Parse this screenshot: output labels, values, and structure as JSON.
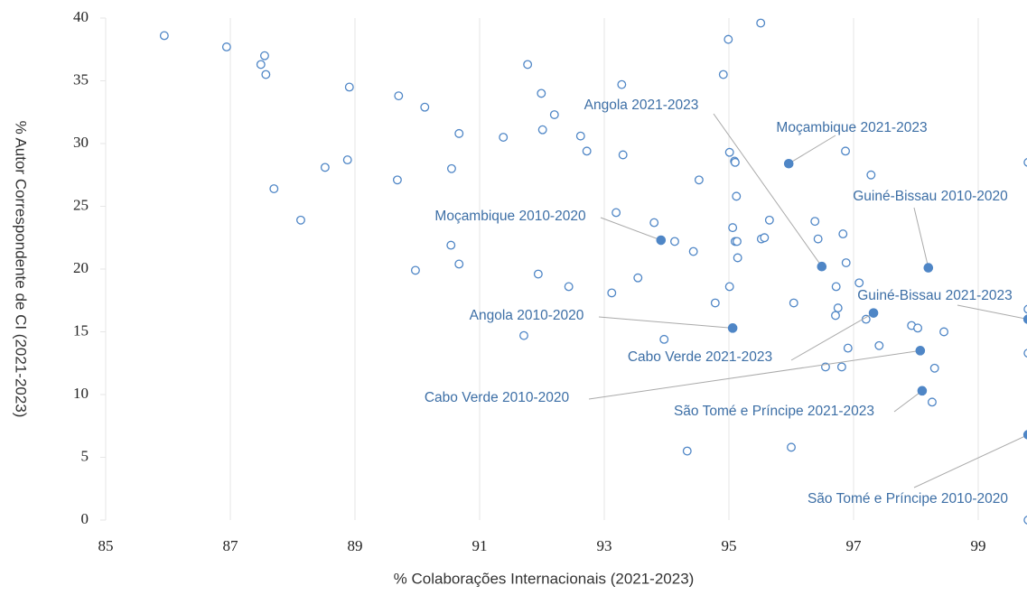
{
  "chart_data": {
    "type": "scatter",
    "xlabel": "% Colaborações Internacionais (2021-2023)",
    "ylabel": "% Autor Correspondente de CI (2021-2023)",
    "xlim": [
      85,
      100
    ],
    "ylim": [
      0,
      40
    ],
    "xticks": [
      85,
      87,
      89,
      91,
      93,
      95,
      97,
      99
    ],
    "yticks": [
      0,
      5,
      10,
      15,
      20,
      25,
      30,
      35,
      40
    ],
    "grid": "x",
    "color": "#4f86c6",
    "x": [
      85.94,
      86.94,
      87.55,
      87.49,
      87.57,
      87.7,
      88.13,
      88.52,
      88.91,
      88.88,
      89.7,
      89.68,
      90.12,
      90.55,
      90.54,
      89.97,
      90.67,
      90.67,
      91.38,
      91.77,
      91.99,
      92.01,
      92.2,
      91.94,
      91.71,
      92.43,
      92.62,
      92.72,
      93.28,
      93.3,
      93.19,
      93.12,
      93.54,
      93.8,
      94.13,
      94.43,
      94.52,
      93.96,
      94.33,
      94.99,
      95.51,
      94.91,
      95.01,
      95.09,
      95.1,
      95.12,
      95.06,
      95.1,
      95.13,
      95.14,
      95.65,
      95.52,
      95.57,
      95.01,
      94.78,
      96.04,
      96.0,
      96.38,
      96.43,
      96.83,
      96.88,
      96.87,
      97.28,
      96.72,
      97.09,
      96.75,
      96.71,
      97.2,
      97.93,
      98.03,
      98.45,
      96.91,
      97.41,
      96.55,
      96.81,
      98.3,
      98.26,
      99.8,
      99.8,
      99.8,
      99.8
    ],
    "values": [
      38.6,
      37.7,
      37.0,
      36.3,
      35.5,
      26.4,
      23.9,
      28.1,
      34.5,
      28.7,
      33.8,
      27.1,
      32.9,
      28.0,
      21.9,
      19.9,
      30.8,
      20.4,
      30.5,
      36.3,
      34.0,
      31.1,
      32.3,
      19.6,
      14.7,
      18.6,
      30.6,
      29.4,
      34.7,
      29.1,
      24.5,
      18.1,
      19.3,
      23.7,
      22.2,
      21.4,
      27.1,
      14.4,
      5.5,
      38.3,
      39.6,
      35.5,
      29.3,
      28.6,
      28.5,
      25.8,
      23.3,
      22.2,
      22.2,
      20.9,
      23.9,
      22.4,
      22.5,
      18.6,
      17.3,
      17.3,
      5.8,
      23.8,
      22.4,
      22.8,
      20.5,
      29.4,
      27.5,
      18.6,
      18.9,
      16.9,
      16.3,
      16.0,
      15.5,
      15.3,
      15.0,
      13.7,
      13.9,
      12.2,
      12.2,
      12.1,
      9.4,
      28.5,
      16.8,
      13.3,
      0
    ],
    "highlighted": [
      {
        "label": "Angola 2021-2023",
        "x": 96.49,
        "y": 20.2
      },
      {
        "label": "Moçambique 2021-2023",
        "x": 95.96,
        "y": 28.4
      },
      {
        "label": "Guiné-Bissau 2010-2020",
        "x": 98.2,
        "y": 20.1
      },
      {
        "label": "Moçambique 2010-2020",
        "x": 93.91,
        "y": 22.3
      },
      {
        "label": "Angola 2010-2020",
        "x": 95.06,
        "y": 15.3
      },
      {
        "label": "Guiné-Bissau 2021-2023",
        "x": 99.8,
        "y": 16.0
      },
      {
        "label": "Cabo Verde 2021-2023",
        "x": 97.32,
        "y": 16.5
      },
      {
        "label": "Cabo Verde 2010-2020",
        "x": 98.07,
        "y": 13.5
      },
      {
        "label": "São Tomé e Príncipe 2021-2023",
        "x": 98.1,
        "y": 10.3
      },
      {
        "label": "São Tomé e Príncipe 2010-2020",
        "x": 99.8,
        "y": 6.8
      }
    ]
  }
}
